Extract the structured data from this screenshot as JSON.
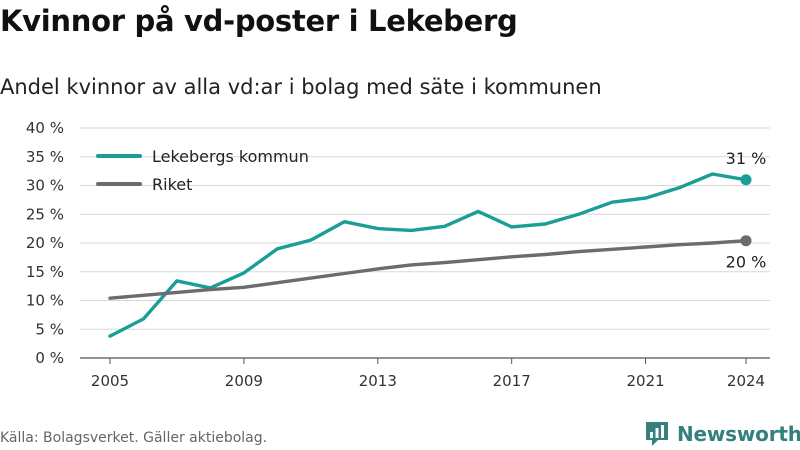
{
  "chart_data": {
    "type": "line",
    "title": "Kvinnor på vd-poster i Lekeberg",
    "subtitle": "Andel kvinnor av alla vd:ar i bolag med säte i kommunen",
    "xlabel": "",
    "ylabel": "",
    "xlim": [
      2005,
      2024
    ],
    "ylim": [
      0,
      40
    ],
    "x_ticks": [
      "2005",
      "2009",
      "2013",
      "2017",
      "2021",
      "2024"
    ],
    "y_ticks": [
      "0 %",
      "5 %",
      "10 %",
      "15 %",
      "20 %",
      "25 %",
      "30 %",
      "35 %",
      "40 %"
    ],
    "grid": true,
    "legend_position": "top-left",
    "x": [
      2005,
      2006,
      2007,
      2008,
      2009,
      2010,
      2011,
      2012,
      2013,
      2014,
      2015,
      2016,
      2017,
      2018,
      2019,
      2020,
      2021,
      2022,
      2023,
      2024
    ],
    "series": [
      {
        "name": "Lekebergs kommun",
        "color": "#1a9e96",
        "values": [
          3.8,
          6.8,
          13.4,
          12.2,
          14.8,
          19.0,
          20.5,
          23.7,
          22.5,
          22.2,
          22.9,
          25.5,
          22.8,
          23.3,
          25.0,
          27.1,
          27.8,
          29.6,
          32.0,
          31.0
        ],
        "end_label": "31 %"
      },
      {
        "name": "Riket",
        "color": "#6b6b70",
        "values": [
          10.4,
          10.9,
          11.4,
          11.9,
          12.3,
          13.1,
          13.9,
          14.7,
          15.5,
          16.2,
          16.6,
          17.1,
          17.6,
          18.0,
          18.5,
          18.9,
          19.3,
          19.7,
          20.0,
          20.4
        ],
        "end_label": "20 %"
      }
    ]
  },
  "footer": {
    "source": "Källa: Bolagsverket. Gäller aktiebolag.",
    "brand": "Newsworthy"
  },
  "colors": {
    "grid": "#d7d7d7",
    "axis": "#555555",
    "brand": "#33807e"
  }
}
